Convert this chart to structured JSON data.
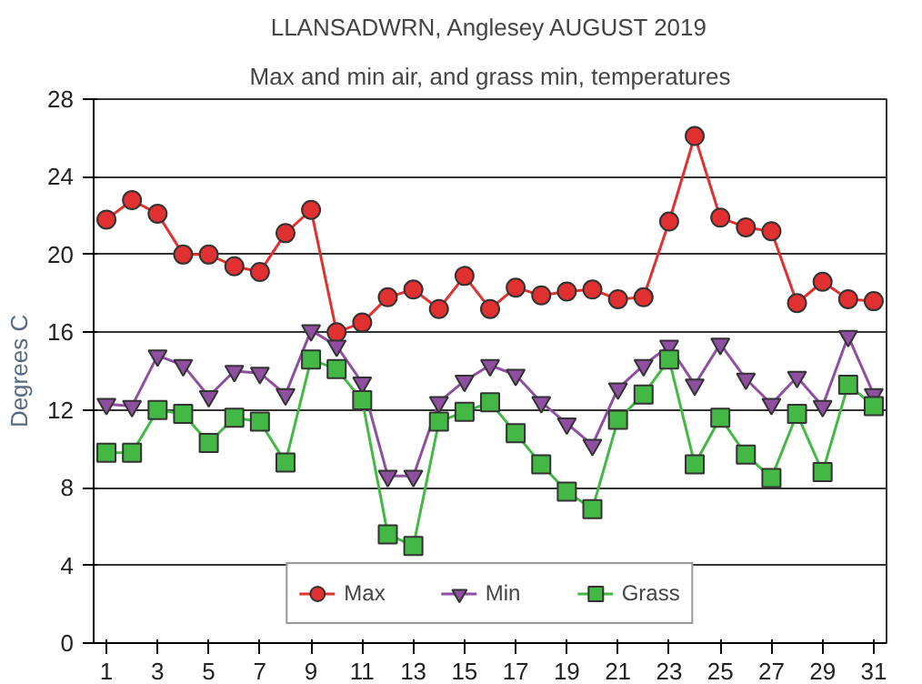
{
  "chart_data": {
    "type": "line",
    "title": "LLANSADWRN, Anglesey AUGUST 2019",
    "subtitle": "Max and min air, and grass min, temperatures",
    "ylabel": "Degrees C",
    "x": [
      1,
      2,
      3,
      4,
      5,
      6,
      7,
      8,
      9,
      10,
      11,
      12,
      13,
      14,
      15,
      16,
      17,
      18,
      19,
      20,
      21,
      22,
      23,
      24,
      25,
      26,
      27,
      28,
      29,
      30,
      31
    ],
    "xlim": [
      0.5,
      31.5
    ],
    "xticks": [
      1,
      3,
      5,
      7,
      9,
      11,
      13,
      15,
      17,
      19,
      21,
      23,
      25,
      27,
      29,
      31
    ],
    "ylim": [
      0,
      28
    ],
    "yticks": [
      0,
      4,
      8,
      12,
      16,
      20,
      24,
      28
    ],
    "grid": "y",
    "legend": "bottom",
    "series": [
      {
        "name": "Max",
        "color": "#e03030",
        "marker": "circle",
        "values": [
          21.8,
          22.8,
          22.1,
          20,
          20,
          19.4,
          19.1,
          21.1,
          22.3,
          16,
          16.5,
          17.8,
          18.2,
          17.2,
          18.9,
          17.2,
          18.3,
          17.9,
          18.1,
          18.2,
          17.7,
          17.8,
          21.7,
          26.1,
          21.9,
          21.4,
          21.2,
          17.5,
          18.6,
          17.7,
          17.6
        ]
      },
      {
        "name": "Min",
        "color": "#8e4fa0",
        "marker": "triangle",
        "values": [
          12.3,
          12.2,
          14.8,
          14.3,
          12.7,
          14.0,
          13.9,
          12.8,
          16.1,
          15.3,
          13.4,
          8.6,
          8.6,
          12.4,
          13.5,
          14.3,
          13.8,
          12.4,
          11.3,
          10.2,
          13.1,
          14.3,
          15.3,
          13.3,
          15.4,
          13.6,
          12.3,
          13.7,
          12.2,
          15.8,
          12.8
        ]
      },
      {
        "name": "Grass",
        "color": "#44b844",
        "marker": "square",
        "values": [
          9.8,
          9.8,
          12.0,
          11.8,
          10.3,
          11.6,
          11.4,
          9.3,
          14.6,
          14.1,
          12.5,
          5.6,
          5.0,
          11.4,
          11.9,
          12.4,
          10.8,
          9.2,
          7.8,
          6.9,
          11.5,
          12.8,
          14.6,
          9.2,
          11.6,
          9.7,
          8.5,
          11.8,
          8.8,
          13.3,
          12.2
        ]
      }
    ]
  }
}
